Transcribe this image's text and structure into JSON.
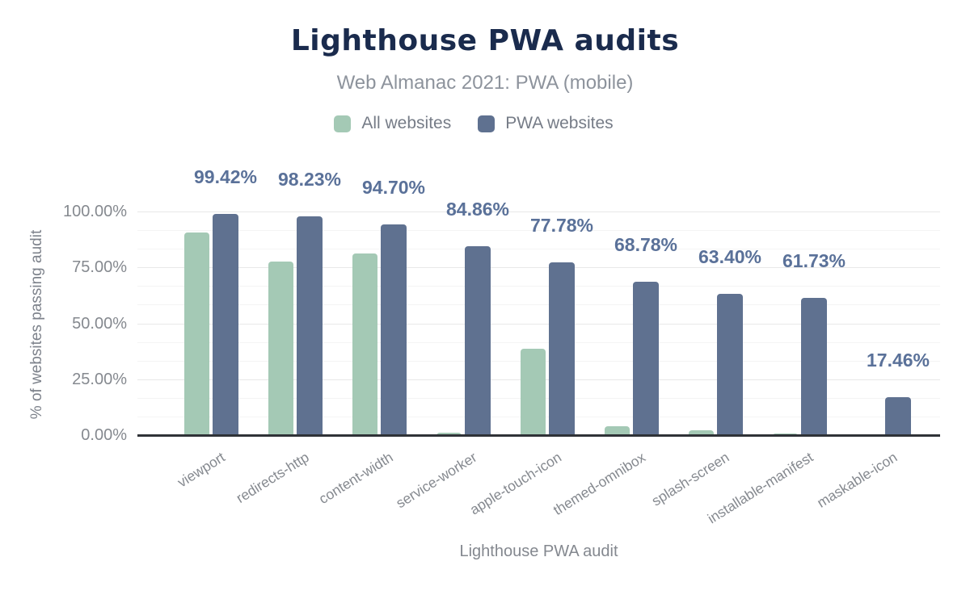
{
  "header": {
    "title": "Lighthouse PWA audits",
    "subtitle": "Web Almanac 2021: PWA (mobile)"
  },
  "chart_data": {
    "type": "bar",
    "title": "Lighthouse PWA audits",
    "subtitle": "Web Almanac 2021: PWA (mobile)",
    "xlabel": "Lighthouse PWA audit",
    "ylabel": "% of websites passing audit",
    "categories": [
      "viewport",
      "redirects-http",
      "content-width",
      "service-worker",
      "apple-touch-icon",
      "themed-omnibox",
      "splash-screen",
      "installable-manifest",
      "maskable-icon"
    ],
    "series": [
      {
        "name": "All websites",
        "color": "#a4c9b5",
        "values": [
          90.9,
          77.9,
          81.7,
          1.5,
          38.9,
          4.4,
          2.4,
          1.1,
          0.1
        ],
        "values_note": "estimated from bar heights; not labeled on chart"
      },
      {
        "name": "PWA websites",
        "color": "#5f7190",
        "values": [
          99.42,
          98.23,
          94.7,
          84.86,
          77.78,
          68.78,
          63.4,
          61.73,
          17.46
        ],
        "labels": [
          "99.42%",
          "98.23%",
          "94.70%",
          "84.86%",
          "77.78%",
          "68.78%",
          "63.40%",
          "61.73%",
          "17.46%"
        ]
      }
    ],
    "ylim": [
      0,
      100
    ],
    "yticks": [
      "0.00%",
      "25.00%",
      "50.00%",
      "75.00%",
      "100.00%"
    ],
    "grid": "horizontal minor lines every 8.33%, major every 25%",
    "legend_position": "top",
    "value_label_color": "#5a7199",
    "title_color": "#1a2b4d",
    "axis_text_color": "#85898f"
  }
}
